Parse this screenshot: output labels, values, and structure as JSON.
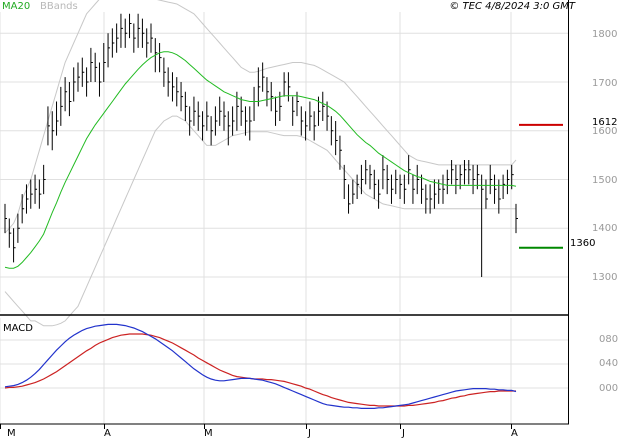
{
  "header": {
    "ma_label": "MA20",
    "bands_label": "BBands",
    "timestamp": "© TEC 4/8/2024 3:0 GMT"
  },
  "macd_label": "MACD",
  "price_axis": {
    "ticks": [
      "1800",
      "1700",
      "1600",
      "1500",
      "1400",
      "1300"
    ],
    "range": [
      1240,
      1880
    ]
  },
  "macd_axis": {
    "ticks": [
      "080",
      "040",
      "000"
    ],
    "range": [
      -50,
      130
    ]
  },
  "x_axis": {
    "ticks": [
      "M",
      "A",
      "M",
      "J",
      "J",
      "A"
    ]
  },
  "levels": [
    {
      "label": "1612",
      "value": 1612,
      "color": "#cc0000"
    },
    {
      "label": "1360",
      "value": 1360,
      "color": "#008800"
    }
  ],
  "colors": {
    "bars": "#000000",
    "ma": "#22bb22",
    "bands": "#c8c8c8",
    "macd": "#2233cc",
    "signal": "#cc2222",
    "grid": "#e0e0e0",
    "axis_text": "#9a9a9a"
  },
  "chart_data": [
    {
      "type": "ohlc",
      "title": "",
      "ylim": [
        1240,
        1880
      ],
      "x_ticks": [
        "M",
        "A",
        "M",
        "J",
        "J",
        "A"
      ],
      "y_ticks": [
        1800,
        1700,
        1600,
        1500,
        1400,
        1300
      ],
      "close": [
        1420,
        1390,
        1360,
        1400,
        1440,
        1460,
        1470,
        1480,
        1470,
        1500,
        1610,
        1600,
        1620,
        1650,
        1680,
        1660,
        1700,
        1710,
        1720,
        1700,
        1740,
        1730,
        1700,
        1740,
        1770,
        1780,
        1790,
        1810,
        1800,
        1820,
        1790,
        1810,
        1800,
        1780,
        1790,
        1760,
        1750,
        1720,
        1700,
        1690,
        1680,
        1670,
        1650,
        1620,
        1640,
        1630,
        1610,
        1630,
        1600,
        1620,
        1640,
        1630,
        1610,
        1620,
        1650,
        1640,
        1620,
        1620,
        1660,
        1690,
        1710,
        1680,
        1670,
        1640,
        1650,
        1700,
        1690,
        1640,
        1660,
        1620,
        1610,
        1630,
        1610,
        1640,
        1650,
        1630,
        1600,
        1580,
        1560,
        1500,
        1450,
        1470,
        1490,
        1500,
        1520,
        1510,
        1490,
        1470,
        1520,
        1500,
        1480,
        1500,
        1490,
        1480,
        1520,
        1480,
        1500,
        1480,
        1460,
        1460,
        1470,
        1480,
        1480,
        1500,
        1520,
        1500,
        1510,
        1520,
        1520,
        1500,
        1510,
        1480,
        1460,
        1500,
        1480,
        1460,
        1490,
        1500,
        1510,
        1420
      ],
      "high": [
        1450,
        1420,
        1400,
        1430,
        1470,
        1490,
        1500,
        1510,
        1500,
        1530,
        1650,
        1640,
        1660,
        1690,
        1710,
        1700,
        1730,
        1740,
        1750,
        1730,
        1770,
        1760,
        1740,
        1780,
        1800,
        1810,
        1820,
        1840,
        1830,
        1840,
        1820,
        1840,
        1830,
        1810,
        1820,
        1790,
        1780,
        1750,
        1730,
        1720,
        1710,
        1700,
        1680,
        1650,
        1670,
        1660,
        1640,
        1660,
        1630,
        1650,
        1670,
        1660,
        1640,
        1650,
        1680,
        1670,
        1650,
        1650,
        1690,
        1730,
        1740,
        1710,
        1700,
        1670,
        1680,
        1720,
        1720,
        1670,
        1680,
        1650,
        1640,
        1660,
        1640,
        1670,
        1680,
        1660,
        1630,
        1620,
        1590,
        1530,
        1490,
        1500,
        1510,
        1530,
        1540,
        1530,
        1520,
        1500,
        1550,
        1530,
        1510,
        1520,
        1510,
        1510,
        1550,
        1510,
        1530,
        1510,
        1490,
        1490,
        1500,
        1500,
        1510,
        1520,
        1540,
        1530,
        1530,
        1540,
        1540,
        1530,
        1530,
        1510,
        1500,
        1530,
        1510,
        1500,
        1510,
        1520,
        1530,
        1450
      ],
      "low": [
        1390,
        1360,
        1330,
        1370,
        1410,
        1430,
        1440,
        1450,
        1440,
        1470,
        1570,
        1560,
        1590,
        1610,
        1640,
        1630,
        1660,
        1680,
        1690,
        1670,
        1700,
        1700,
        1670,
        1700,
        1730,
        1750,
        1760,
        1770,
        1770,
        1790,
        1760,
        1770,
        1770,
        1750,
        1760,
        1720,
        1720,
        1690,
        1670,
        1660,
        1650,
        1640,
        1620,
        1590,
        1610,
        1600,
        1580,
        1600,
        1570,
        1590,
        1610,
        1600,
        1570,
        1590,
        1600,
        1610,
        1590,
        1580,
        1620,
        1650,
        1680,
        1650,
        1640,
        1610,
        1620,
        1670,
        1660,
        1610,
        1630,
        1590,
        1580,
        1600,
        1580,
        1610,
        1620,
        1600,
        1570,
        1550,
        1520,
        1460,
        1430,
        1450,
        1460,
        1470,
        1490,
        1480,
        1460,
        1440,
        1480,
        1470,
        1450,
        1470,
        1460,
        1450,
        1490,
        1450,
        1470,
        1450,
        1430,
        1430,
        1440,
        1450,
        1450,
        1470,
        1490,
        1470,
        1480,
        1490,
        1490,
        1470,
        1480,
        1300,
        1440,
        1470,
        1450,
        1430,
        1460,
        1470,
        1480,
        1390
      ],
      "ma20": [
        1320,
        1318,
        1318,
        1322,
        1330,
        1340,
        1350,
        1362,
        1374,
        1388,
        1410,
        1432,
        1452,
        1474,
        1494,
        1512,
        1530,
        1548,
        1566,
        1584,
        1598,
        1612,
        1624,
        1636,
        1648,
        1660,
        1672,
        1684,
        1696,
        1706,
        1716,
        1726,
        1735,
        1743,
        1750,
        1755,
        1760,
        1762,
        1762,
        1760,
        1756,
        1750,
        1744,
        1736,
        1728,
        1720,
        1712,
        1704,
        1698,
        1692,
        1686,
        1680,
        1676,
        1672,
        1668,
        1664,
        1662,
        1660,
        1660,
        1660,
        1662,
        1664,
        1666,
        1668,
        1670,
        1672,
        1672,
        1672,
        1672,
        1670,
        1668,
        1666,
        1664,
        1660,
        1656,
        1652,
        1646,
        1640,
        1632,
        1622,
        1612,
        1602,
        1592,
        1584,
        1576,
        1570,
        1562,
        1554,
        1548,
        1542,
        1536,
        1530,
        1524,
        1518,
        1514,
        1510,
        1506,
        1504,
        1500,
        1496,
        1494,
        1492,
        1490,
        1488,
        1488,
        1488,
        1488,
        1488,
        1488,
        1488,
        1488,
        1488,
        1488,
        1488,
        1488,
        1488,
        1488,
        1488,
        1488,
        1486
      ],
      "bb_upper": [
        1390,
        1400,
        1410,
        1430,
        1460,
        1480,
        1500,
        1530,
        1560,
        1590,
        1620,
        1650,
        1680,
        1710,
        1740,
        1760,
        1780,
        1800,
        1820,
        1840,
        1850,
        1860,
        1870,
        1875,
        1880,
        1880,
        1880,
        1880,
        1880,
        1880,
        1880,
        1878,
        1876,
        1874,
        1872,
        1870,
        1868,
        1866,
        1864,
        1862,
        1860,
        1855,
        1850,
        1845,
        1840,
        1830,
        1820,
        1810,
        1800,
        1790,
        1780,
        1770,
        1760,
        1750,
        1740,
        1730,
        1725,
        1720,
        1720,
        1722,
        1725,
        1728,
        1730,
        1732,
        1734,
        1736,
        1738,
        1740,
        1740,
        1740,
        1738,
        1736,
        1734,
        1730,
        1725,
        1720,
        1715,
        1710,
        1705,
        1700,
        1690,
        1680,
        1670,
        1660,
        1650,
        1640,
        1630,
        1620,
        1610,
        1600,
        1590,
        1580,
        1570,
        1560,
        1550,
        1545,
        1540,
        1538,
        1536,
        1534,
        1532,
        1530,
        1530,
        1530,
        1530,
        1530,
        1530,
        1530,
        1530,
        1530,
        1530,
        1530,
        1530,
        1530,
        1530,
        1530,
        1530,
        1530,
        1530,
        1540
      ],
      "bb_lower": [
        1270,
        1260,
        1250,
        1240,
        1230,
        1220,
        1210,
        1210,
        1205,
        1200,
        1200,
        1200,
        1202,
        1205,
        1210,
        1220,
        1230,
        1240,
        1260,
        1280,
        1300,
        1320,
        1340,
        1360,
        1380,
        1400,
        1420,
        1440,
        1460,
        1480,
        1500,
        1520,
        1540,
        1560,
        1580,
        1600,
        1610,
        1620,
        1625,
        1630,
        1630,
        1625,
        1620,
        1610,
        1600,
        1590,
        1580,
        1570,
        1570,
        1570,
        1575,
        1580,
        1585,
        1590,
        1592,
        1594,
        1596,
        1598,
        1598,
        1598,
        1598,
        1598,
        1596,
        1594,
        1592,
        1590,
        1590,
        1590,
        1590,
        1588,
        1585,
        1580,
        1575,
        1570,
        1565,
        1560,
        1550,
        1540,
        1530,
        1520,
        1510,
        1500,
        1490,
        1480,
        1470,
        1465,
        1460,
        1455,
        1450,
        1448,
        1446,
        1444,
        1442,
        1440,
        1440,
        1440,
        1440,
        1440,
        1440,
        1440,
        1440,
        1440,
        1440,
        1440,
        1440,
        1440,
        1440,
        1440,
        1440,
        1440,
        1440,
        1440,
        1440,
        1440,
        1440,
        1440,
        1440,
        1440,
        1440,
        1440
      ],
      "macd": [
        2,
        3,
        4,
        6,
        9,
        13,
        18,
        24,
        31,
        39,
        47,
        55,
        63,
        70,
        77,
        83,
        88,
        92,
        96,
        99,
        101,
        103,
        104,
        105,
        106,
        106,
        106,
        105,
        104,
        102,
        100,
        97,
        94,
        90,
        86,
        82,
        77,
        72,
        67,
        62,
        56,
        50,
        44,
        38,
        32,
        27,
        22,
        18,
        15,
        13,
        12,
        12,
        13,
        14,
        15,
        16,
        16,
        16,
        15,
        14,
        13,
        11,
        9,
        7,
        4,
        1,
        -2,
        -5,
        -8,
        -11,
        -14,
        -17,
        -20,
        -23,
        -26,
        -28,
        -29,
        -30,
        -31,
        -32,
        -32,
        -33,
        -33,
        -34,
        -34,
        -34,
        -34,
        -33,
        -33,
        -32,
        -31,
        -30,
        -29,
        -28,
        -27,
        -25,
        -23,
        -21,
        -19,
        -17,
        -15,
        -13,
        -11,
        -9,
        -7,
        -5,
        -4,
        -3,
        -2,
        -1,
        -1,
        -1,
        -1,
        -2,
        -2,
        -3,
        -3,
        -4,
        -4,
        -6
      ],
      "signal": [
        0,
        1,
        1,
        2,
        3,
        5,
        7,
        9,
        12,
        15,
        19,
        23,
        27,
        32,
        37,
        42,
        47,
        52,
        57,
        62,
        66,
        71,
        75,
        78,
        81,
        84,
        86,
        88,
        89,
        90,
        90,
        90,
        90,
        89,
        88,
        86,
        84,
        81,
        78,
        75,
        71,
        67,
        63,
        59,
        55,
        50,
        46,
        42,
        38,
        34,
        30,
        27,
        24,
        21,
        19,
        18,
        17,
        16,
        15,
        15,
        15,
        14,
        14,
        13,
        12,
        11,
        9,
        7,
        5,
        3,
        0,
        -2,
        -5,
        -8,
        -11,
        -13,
        -16,
        -18,
        -20,
        -22,
        -24,
        -25,
        -26,
        -27,
        -28,
        -29,
        -29,
        -30,
        -30,
        -30,
        -30,
        -30,
        -30,
        -30,
        -29,
        -29,
        -28,
        -27,
        -26,
        -25,
        -24,
        -22,
        -21,
        -19,
        -17,
        -16,
        -14,
        -13,
        -11,
        -10,
        -9,
        -8,
        -7,
        -6,
        -6,
        -5,
        -5,
        -5,
        -5,
        -5
      ]
    }
  ]
}
